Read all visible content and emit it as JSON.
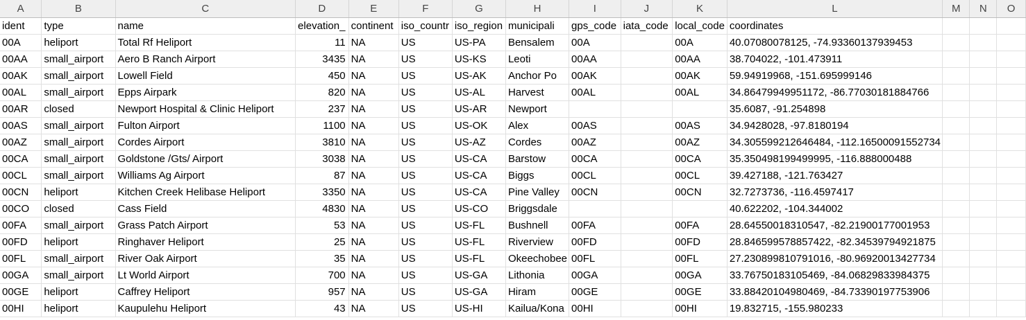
{
  "column_letters": [
    "A",
    "B",
    "C",
    "D",
    "E",
    "F",
    "G",
    "H",
    "I",
    "J",
    "K",
    "L",
    "M",
    "N",
    "O"
  ],
  "header_row": [
    "ident",
    "type",
    "name",
    "elevation_",
    "continent",
    "iso_countr",
    "iso_region",
    "municipali",
    "gps_code",
    "iata_code",
    "local_code",
    "coordinates"
  ],
  "rows": [
    {
      "ident": "00A",
      "type": "heliport",
      "name": "Total Rf Heliport",
      "elevation": "11",
      "continent": "NA",
      "iso_country": "US",
      "iso_region": "US-PA",
      "municipality": "Bensalem",
      "gps_code": "00A",
      "iata_code": "",
      "local_code": "00A",
      "coordinates": "40.07080078125, -74.93360137939453"
    },
    {
      "ident": "00AA",
      "type": "small_airport",
      "name": "Aero B Ranch Airport",
      "elevation": "3435",
      "continent": "NA",
      "iso_country": "US",
      "iso_region": "US-KS",
      "municipality": "Leoti",
      "gps_code": "00AA",
      "iata_code": "",
      "local_code": "00AA",
      "coordinates": "38.704022, -101.473911"
    },
    {
      "ident": "00AK",
      "type": "small_airport",
      "name": "Lowell Field",
      "elevation": "450",
      "continent": "NA",
      "iso_country": "US",
      "iso_region": "US-AK",
      "municipality": "Anchor Po",
      "gps_code": "00AK",
      "iata_code": "",
      "local_code": "00AK",
      "coordinates": "59.94919968, -151.695999146"
    },
    {
      "ident": "00AL",
      "type": "small_airport",
      "name": "Epps Airpark",
      "elevation": "820",
      "continent": "NA",
      "iso_country": "US",
      "iso_region": "US-AL",
      "municipality": "Harvest",
      "gps_code": "00AL",
      "iata_code": "",
      "local_code": "00AL",
      "coordinates": "34.86479949951172, -86.77030181884766"
    },
    {
      "ident": "00AR",
      "type": "closed",
      "name": "Newport Hospital & Clinic Heliport",
      "elevation": "237",
      "continent": "NA",
      "iso_country": "US",
      "iso_region": "US-AR",
      "municipality": "Newport",
      "gps_code": "",
      "iata_code": "",
      "local_code": "",
      "coordinates": "35.6087, -91.254898"
    },
    {
      "ident": "00AS",
      "type": "small_airport",
      "name": "Fulton Airport",
      "elevation": "1100",
      "continent": "NA",
      "iso_country": "US",
      "iso_region": "US-OK",
      "municipality": "Alex",
      "gps_code": "00AS",
      "iata_code": "",
      "local_code": "00AS",
      "coordinates": "34.9428028, -97.8180194"
    },
    {
      "ident": "00AZ",
      "type": "small_airport",
      "name": "Cordes Airport",
      "elevation": "3810",
      "continent": "NA",
      "iso_country": "US",
      "iso_region": "US-AZ",
      "municipality": "Cordes",
      "gps_code": "00AZ",
      "iata_code": "",
      "local_code": "00AZ",
      "coordinates": "34.305599212646484, -112.16500091552734"
    },
    {
      "ident": "00CA",
      "type": "small_airport",
      "name": "Goldstone /Gts/ Airport",
      "elevation": "3038",
      "continent": "NA",
      "iso_country": "US",
      "iso_region": "US-CA",
      "municipality": "Barstow",
      "gps_code": "00CA",
      "iata_code": "",
      "local_code": "00CA",
      "coordinates": "35.350498199499995, -116.888000488"
    },
    {
      "ident": "00CL",
      "type": "small_airport",
      "name": "Williams Ag Airport",
      "elevation": "87",
      "continent": "NA",
      "iso_country": "US",
      "iso_region": "US-CA",
      "municipality": "Biggs",
      "gps_code": "00CL",
      "iata_code": "",
      "local_code": "00CL",
      "coordinates": "39.427188, -121.763427"
    },
    {
      "ident": "00CN",
      "type": "heliport",
      "name": "Kitchen Creek Helibase Heliport",
      "elevation": "3350",
      "continent": "NA",
      "iso_country": "US",
      "iso_region": "US-CA",
      "municipality": "Pine Valley",
      "gps_code": "00CN",
      "iata_code": "",
      "local_code": "00CN",
      "coordinates": "32.7273736, -116.4597417"
    },
    {
      "ident": "00CO",
      "type": "closed",
      "name": "Cass Field",
      "elevation": "4830",
      "continent": "NA",
      "iso_country": "US",
      "iso_region": "US-CO",
      "municipality": "Briggsdale",
      "gps_code": "",
      "iata_code": "",
      "local_code": "",
      "coordinates": "40.622202, -104.344002"
    },
    {
      "ident": "00FA",
      "type": "small_airport",
      "name": "Grass Patch Airport",
      "elevation": "53",
      "continent": "NA",
      "iso_country": "US",
      "iso_region": "US-FL",
      "municipality": "Bushnell",
      "gps_code": "00FA",
      "iata_code": "",
      "local_code": "00FA",
      "coordinates": "28.64550018310547, -82.21900177001953"
    },
    {
      "ident": "00FD",
      "type": "heliport",
      "name": "Ringhaver Heliport",
      "elevation": "25",
      "continent": "NA",
      "iso_country": "US",
      "iso_region": "US-FL",
      "municipality": "Riverview",
      "gps_code": "00FD",
      "iata_code": "",
      "local_code": "00FD",
      "coordinates": "28.846599578857422, -82.34539794921875"
    },
    {
      "ident": "00FL",
      "type": "small_airport",
      "name": "River Oak Airport",
      "elevation": "35",
      "continent": "NA",
      "iso_country": "US",
      "iso_region": "US-FL",
      "municipality": "Okeechobee",
      "gps_code": "00FL",
      "iata_code": "",
      "local_code": "00FL",
      "coordinates": "27.230899810791016, -80.96920013427734"
    },
    {
      "ident": "00GA",
      "type": "small_airport",
      "name": "Lt World Airport",
      "elevation": "700",
      "continent": "NA",
      "iso_country": "US",
      "iso_region": "US-GA",
      "municipality": "Lithonia",
      "gps_code": "00GA",
      "iata_code": "",
      "local_code": "00GA",
      "coordinates": "33.76750183105469, -84.06829833984375"
    },
    {
      "ident": "00GE",
      "type": "heliport",
      "name": "Caffrey Heliport",
      "elevation": "957",
      "continent": "NA",
      "iso_country": "US",
      "iso_region": "US-GA",
      "municipality": "Hiram",
      "gps_code": "00GE",
      "iata_code": "",
      "local_code": "00GE",
      "coordinates": "33.88420104980469, -84.73390197753906"
    },
    {
      "ident": "00HI",
      "type": "heliport",
      "name": "Kaupulehu Heliport",
      "elevation": "43",
      "continent": "NA",
      "iso_country": "US",
      "iso_region": "US-HI",
      "municipality": "Kailua/Kona",
      "gps_code": "00HI",
      "iata_code": "",
      "local_code": "00HI",
      "coordinates": "19.832715, -155.980233"
    }
  ]
}
